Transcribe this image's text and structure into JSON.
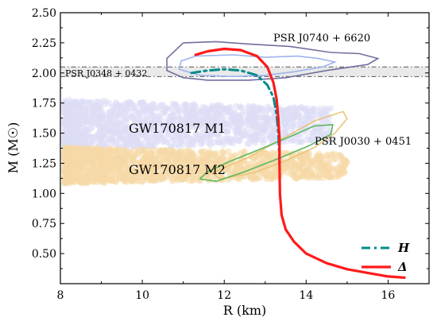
{
  "chart_data": {
    "type": "line",
    "xlabel": "R (km)",
    "ylabel": "M (M☉)",
    "xlim": [
      8,
      17
    ],
    "ylim": [
      0.25,
      2.5
    ],
    "xticks": [
      8,
      10,
      12,
      14,
      16
    ],
    "yticks": [
      0.5,
      0.75,
      1.0,
      1.25,
      1.5,
      1.75,
      2.0,
      2.25,
      2.5
    ],
    "x_tick_labels": [
      "8",
      "10",
      "12",
      "14",
      "16"
    ],
    "y_tick_labels": [
      "0.50",
      "0.75",
      "1.00",
      "1.25",
      "1.50",
      "1.75",
      "2.00",
      "2.25",
      "2.50"
    ],
    "grid": false,
    "legend_position": "bottom-right",
    "series": [
      {
        "name": "H",
        "style": "dashdot",
        "color": "#008b8b",
        "x": [
          11.2,
          11.6,
          12.0,
          12.4,
          12.8,
          13.05,
          13.2,
          13.28,
          13.32,
          13.34,
          13.35
        ],
        "y": [
          2.0,
          2.02,
          2.03,
          2.02,
          1.98,
          1.9,
          1.8,
          1.65,
          1.5,
          1.35,
          1.22
        ]
      },
      {
        "name": "Δ",
        "style": "solid",
        "color": "#ff1a1a",
        "x": [
          11.3,
          11.6,
          12.0,
          12.4,
          12.8,
          13.05,
          13.2,
          13.28,
          13.32,
          13.35,
          13.35,
          13.36,
          13.4,
          13.5,
          13.7,
          14.0,
          14.5,
          15.0,
          15.5,
          16.0,
          16.4
        ],
        "y": [
          2.15,
          2.18,
          2.2,
          2.19,
          2.14,
          2.05,
          1.92,
          1.78,
          1.62,
          1.45,
          1.25,
          1.0,
          0.82,
          0.7,
          0.6,
          0.5,
          0.42,
          0.37,
          0.34,
          0.31,
          0.3
        ]
      }
    ],
    "bands": [
      {
        "label": "PSR J0348 + 0432",
        "y_lower": 1.97,
        "y_upper": 2.05,
        "color": "#e3e3e3"
      }
    ],
    "scatter_clouds": [
      {
        "label": "GW170817 M1",
        "color": "#dcdcf6",
        "x_range": [
          8.1,
          14.6
        ],
        "y_range": [
          1.36,
          1.78
        ]
      },
      {
        "label": "GW170817 M2",
        "color": "#f5d9a6",
        "x_range": [
          8.1,
          15.0
        ],
        "y_range": [
          1.08,
          1.38
        ]
      }
    ],
    "contours": [
      {
        "label": "PSR J0740 + 6620",
        "colors": [
          "#6f6f9e",
          "#9fb4ee"
        ],
        "outer": [
          [
            11.0,
            2.25
          ],
          [
            11.8,
            2.26
          ],
          [
            12.6,
            2.24
          ],
          [
            13.6,
            2.22
          ],
          [
            14.6,
            2.17
          ],
          [
            15.3,
            2.16
          ],
          [
            15.75,
            2.12
          ],
          [
            15.5,
            2.07
          ],
          [
            14.5,
            2.02
          ],
          [
            13.5,
            1.96
          ],
          [
            12.6,
            1.94
          ],
          [
            11.6,
            1.94
          ],
          [
            11.0,
            1.96
          ],
          [
            10.6,
            2.02
          ],
          [
            10.6,
            2.12
          ],
          [
            11.0,
            2.25
          ]
        ],
        "inner": [
          [
            11.3,
            2.14
          ],
          [
            12.2,
            2.15
          ],
          [
            13.0,
            2.13
          ],
          [
            13.8,
            2.14
          ],
          [
            14.3,
            2.12
          ],
          [
            14.7,
            2.09
          ],
          [
            14.4,
            2.05
          ],
          [
            13.7,
            2.01
          ],
          [
            13.0,
            1.98
          ],
          [
            12.2,
            1.97
          ],
          [
            11.4,
            1.98
          ],
          [
            10.9,
            2.03
          ],
          [
            10.95,
            2.1
          ],
          [
            11.3,
            2.14
          ]
        ]
      },
      {
        "label": "PSR J0030 + 0451",
        "colors": [
          "#e8c57e",
          "#5cb85c"
        ],
        "outer": [
          [
            11.7,
            1.17
          ],
          [
            12.6,
            1.3
          ],
          [
            13.4,
            1.45
          ],
          [
            14.2,
            1.6
          ],
          [
            14.9,
            1.68
          ],
          [
            15.0,
            1.62
          ],
          [
            14.7,
            1.5
          ],
          [
            14.2,
            1.38
          ],
          [
            13.5,
            1.27
          ],
          [
            12.7,
            1.17
          ],
          [
            11.9,
            1.12
          ],
          [
            11.7,
            1.17
          ]
        ],
        "inner": [
          [
            11.4,
            1.12
          ],
          [
            11.6,
            1.18
          ],
          [
            12.1,
            1.26
          ],
          [
            12.9,
            1.37
          ],
          [
            13.6,
            1.47
          ],
          [
            14.2,
            1.56
          ],
          [
            14.65,
            1.57
          ],
          [
            14.6,
            1.49
          ],
          [
            14.1,
            1.4
          ],
          [
            13.4,
            1.3
          ],
          [
            12.5,
            1.18
          ],
          [
            11.8,
            1.1
          ],
          [
            11.4,
            1.12
          ]
        ]
      }
    ],
    "annotations": [
      "PSR J0740 + 6620",
      "PSR J0348 + 0432",
      "GW170817 M1",
      "GW170817 M2",
      "PSR J0030 + 0451"
    ]
  }
}
